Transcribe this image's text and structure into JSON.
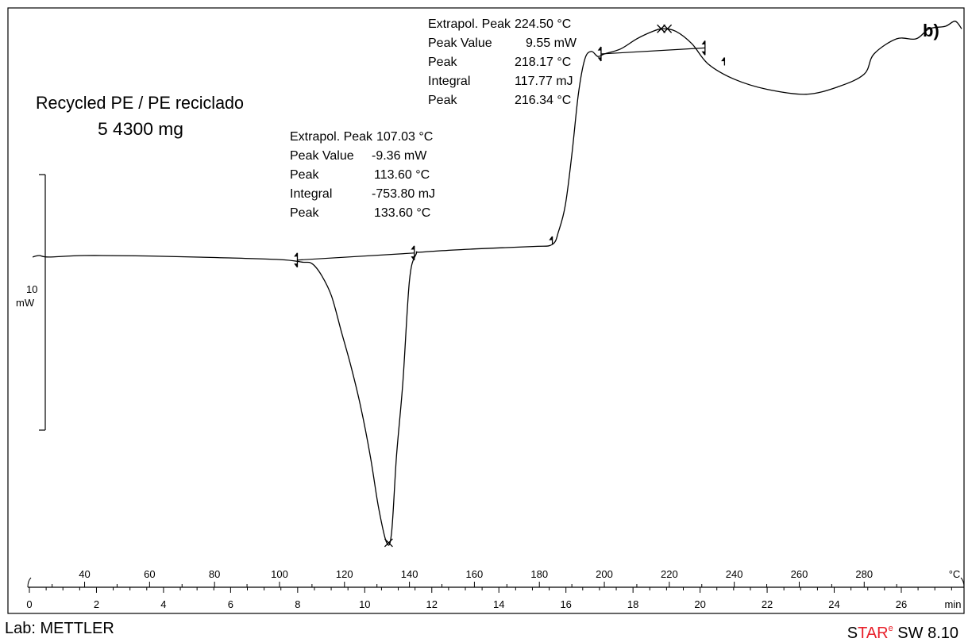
{
  "panel_label": "b)",
  "sample": {
    "name": "Recycled PE / PE reciclado",
    "mass": "5 4300 mg"
  },
  "footer": {
    "lab": "Lab: METTLER",
    "software_s": "S",
    "software_tar": "TAR",
    "software_e": "e",
    "software_rest": " SW 8.10"
  },
  "scale_bar": {
    "value": "10",
    "unit": "mW"
  },
  "colors": {
    "curve": "#000000",
    "frame": "#000000",
    "brand": "#e8202a"
  },
  "chart_data": {
    "type": "line",
    "title": "",
    "x_top_axis": {
      "label": "°C",
      "ticks": [
        40,
        60,
        80,
        100,
        120,
        140,
        160,
        180,
        200,
        220,
        240,
        260,
        280
      ],
      "range": [
        23,
        310
      ]
    },
    "x_bottom_axis": {
      "label": "min",
      "ticks": [
        0,
        2,
        4,
        6,
        8,
        10,
        12,
        14,
        16,
        18,
        20,
        22,
        24,
        26
      ],
      "range": [
        0,
        27.8
      ]
    },
    "series": [
      {
        "x_unit": "°C",
        "y_unit": "mW",
        "points": [
          [
            24,
            -0.3
          ],
          [
            26,
            0
          ],
          [
            29,
            -0.3
          ],
          [
            40,
            0
          ],
          [
            60,
            -0.1
          ],
          [
            80,
            -0.4
          ],
          [
            100,
            -0.8
          ],
          [
            107,
            -1.3
          ],
          [
            110,
            -1.6
          ],
          [
            113,
            -4.0
          ],
          [
            116,
            -8.0
          ],
          [
            119,
            -15.0
          ],
          [
            122,
            -22.0
          ],
          [
            125,
            -30.0
          ],
          [
            128,
            -40.0
          ],
          [
            130.5,
            -50.0
          ],
          [
            133.0,
            -57.0
          ],
          [
            134.5,
            -55.0
          ],
          [
            136,
            -40.0
          ],
          [
            138,
            -25.0
          ],
          [
            140,
            -5.0
          ],
          [
            142,
            0.2
          ],
          [
            144,
            0.7
          ],
          [
            160,
            1.3
          ],
          [
            178,
            1.8
          ],
          [
            184,
            2.2
          ],
          [
            186,
            5.0
          ],
          [
            188,
            10.0
          ],
          [
            190,
            20.0
          ],
          [
            192,
            32.0
          ],
          [
            194,
            39.0
          ],
          [
            196,
            40.5
          ],
          [
            198,
            39.5
          ],
          [
            200,
            40.0
          ],
          [
            205,
            41.0
          ],
          [
            210,
            43.0
          ],
          [
            215,
            44.5
          ],
          [
            218,
            45.0
          ],
          [
            222,
            44.5
          ],
          [
            227,
            42.0
          ],
          [
            232,
            38.0
          ],
          [
            240,
            35.0
          ],
          [
            250,
            33.0
          ],
          [
            262,
            32.0
          ],
          [
            272,
            33.5
          ],
          [
            280,
            36.0
          ],
          [
            283,
            40.0
          ],
          [
            290,
            43.0
          ],
          [
            296,
            43.0
          ],
          [
            300,
            45.0
          ],
          [
            305,
            45.5
          ],
          [
            308,
            46.5
          ],
          [
            310,
            45.0
          ]
        ]
      }
    ],
    "annotations": [
      {
        "name": "endotherm",
        "rows": [
          [
            "Extrapol. Peak",
            "107.03 °C"
          ],
          [
            "Peak Value",
            "-9.36 mW"
          ],
          [
            "Peak",
            "113.60 °C"
          ],
          [
            "Integral",
            "-753.80 mJ"
          ],
          [
            "Peak",
            "133.60 °C"
          ]
        ],
        "baseline": [
          [
            105.5,
            -0.9
          ],
          [
            141.5,
            0.5
          ]
        ],
        "peak_marker": [
          133.6,
          -57.0
        ]
      },
      {
        "name": "exotherm",
        "rows": [
          [
            "Extrapol. Peak",
            "224.50 °C"
          ],
          [
            "Peak Value",
            "9.55 mW"
          ],
          [
            "Peak",
            "218.17 °C"
          ],
          [
            "Integral",
            "117.77 mJ"
          ],
          [
            "Peak",
            "216.34 °C"
          ]
        ],
        "baseline": [
          [
            199,
            40.0
          ],
          [
            231,
            41.2
          ]
        ],
        "peak_marker": [
          217.5,
          45.0
        ]
      }
    ]
  }
}
